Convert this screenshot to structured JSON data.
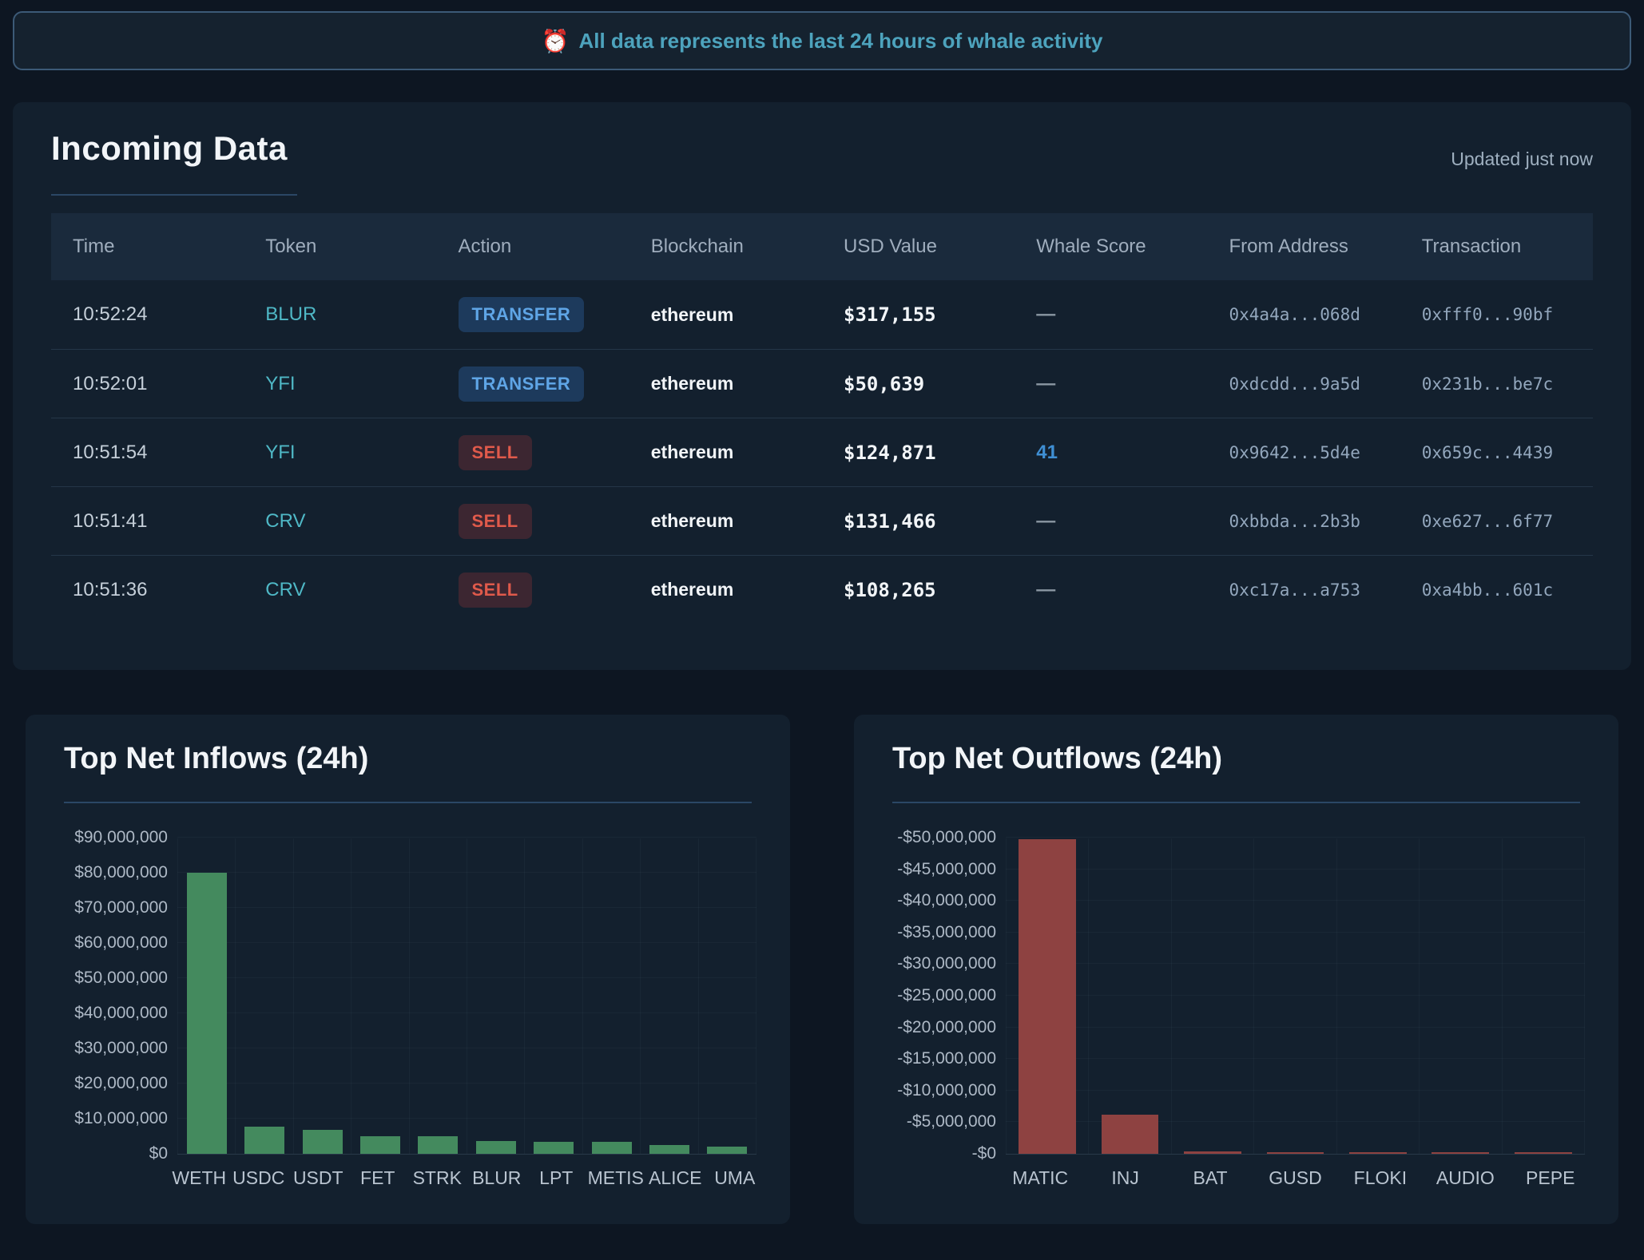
{
  "banner": {
    "icon": "⏰",
    "text": "All data represents the last 24 hours of whale activity"
  },
  "incoming": {
    "title": "Incoming Data",
    "updated": "Updated just now",
    "columns": [
      "Time",
      "Token",
      "Action",
      "Blockchain",
      "USD Value",
      "Whale Score",
      "From Address",
      "Transaction"
    ],
    "rows": [
      {
        "time": "10:52:24",
        "token": "BLUR",
        "action": "TRANSFER",
        "blockchain": "ethereum",
        "usd": "$317,155",
        "score": "—",
        "from": "0x4a4a...068d",
        "tx": "0xfff0...90bf"
      },
      {
        "time": "10:52:01",
        "token": "YFI",
        "action": "TRANSFER",
        "blockchain": "ethereum",
        "usd": "$50,639",
        "score": "—",
        "from": "0xdcdd...9a5d",
        "tx": "0x231b...be7c"
      },
      {
        "time": "10:51:54",
        "token": "YFI",
        "action": "SELL",
        "blockchain": "ethereum",
        "usd": "$124,871",
        "score": "41",
        "from": "0x9642...5d4e",
        "tx": "0x659c...4439"
      },
      {
        "time": "10:51:41",
        "token": "CRV",
        "action": "SELL",
        "blockchain": "ethereum",
        "usd": "$131,466",
        "score": "—",
        "from": "0xbbda...2b3b",
        "tx": "0xe627...6f77"
      },
      {
        "time": "10:51:36",
        "token": "CRV",
        "action": "SELL",
        "blockchain": "ethereum",
        "usd": "$108,265",
        "score": "—",
        "from": "0xc17a...a753",
        "tx": "0xa4bb...601c"
      }
    ]
  },
  "chart_data": [
    {
      "type": "bar",
      "title": "Top Net Inflows (24h)",
      "categories": [
        "WETH",
        "USDC",
        "USDT",
        "FET",
        "STRK",
        "BLUR",
        "LPT",
        "METIS",
        "ALICE",
        "UMA"
      ],
      "values": [
        80000000,
        7700000,
        6800000,
        5000000,
        4900000,
        3600000,
        3400000,
        3500000,
        2500000,
        2000000
      ],
      "xlabel": "",
      "ylabel": "",
      "ylim": [
        0,
        90000000
      ],
      "axis_max": 90000000,
      "tick_labels_bottom_to_top": [
        "$0",
        "$10,000,000",
        "$20,000,000",
        "$30,000,000",
        "$40,000,000",
        "$50,000,000",
        "$60,000,000",
        "$70,000,000",
        "$80,000,000",
        "$90,000,000"
      ],
      "grid": true,
      "legend": false,
      "bar_color": "#448a5e"
    },
    {
      "type": "bar",
      "title": "Top Net Outflows (24h)",
      "categories": [
        "MATIC",
        "INJ",
        "BAT",
        "GUSD",
        "FLOKI",
        "AUDIO",
        "PEPE"
      ],
      "values": [
        -49700000,
        -6200000,
        -400000,
        -250000,
        -80000,
        -150000,
        -200000
      ],
      "xlabel": "",
      "ylabel": "",
      "ylim": [
        -50000000,
        0
      ],
      "axis_max": 50000000,
      "tick_labels_bottom_to_top": [
        "-$0",
        "-$5,000,000",
        "-$10,000,000",
        "-$15,000,000",
        "-$20,000,000",
        "-$25,000,000",
        "-$30,000,000",
        "-$35,000,000",
        "-$40,000,000",
        "-$45,000,000",
        "-$50,000,000"
      ],
      "grid": true,
      "legend": false,
      "bar_color": "#8e4241"
    }
  ],
  "colors": {
    "page_bg": "#0d1622",
    "panel_bg": "#13202e",
    "banner_border": "#3c5a77",
    "banner_text": "#4da3bd",
    "token_link": "#4fb8c6",
    "transfer_badge_text": "#5fa5e6",
    "transfer_badge_bg": "#1d3a5c",
    "sell_badge_text": "#e05a4b",
    "sell_badge_bg": "#3c2631",
    "whale_score": "#3f8fd4",
    "inflow_bar": "#448a5e",
    "outflow_bar": "#8e4241"
  }
}
